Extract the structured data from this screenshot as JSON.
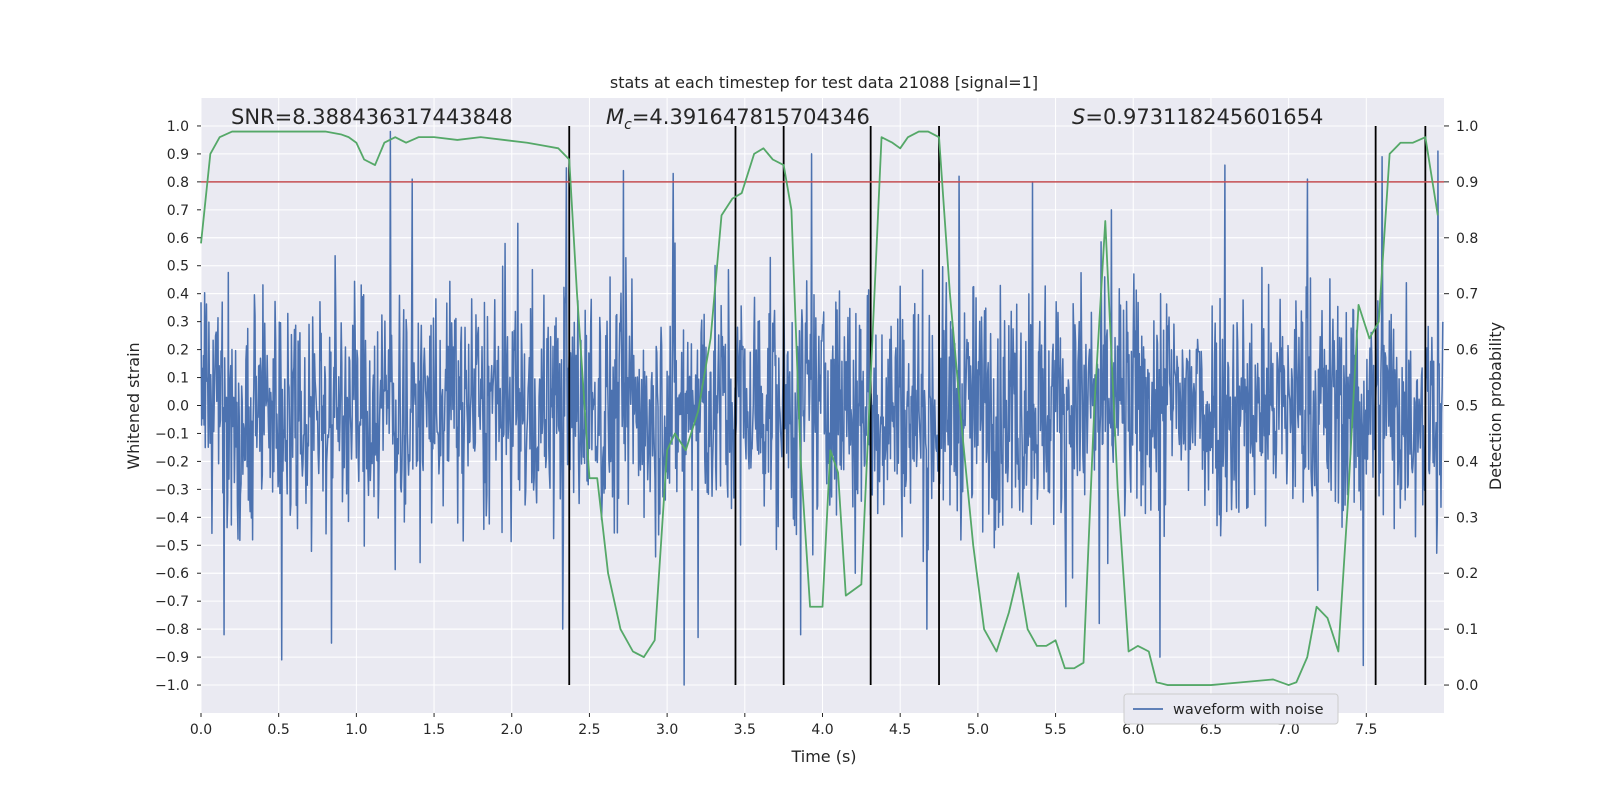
{
  "chart_data": {
    "type": "line",
    "title": "stats at each timestep for test data 21088 [signal=1]",
    "xlabel": "Time (s)",
    "ylabel_left": "Whitened strain",
    "ylabel_right": "Detection probability",
    "xlim": [
      0.0,
      8.0
    ],
    "ylim_left": [
      -1.1,
      1.1
    ],
    "ylim_right": [
      -0.05,
      1.05
    ],
    "x_ticks": [
      "0.0",
      "0.5",
      "1.0",
      "1.5",
      "2.0",
      "2.5",
      "3.0",
      "3.5",
      "4.0",
      "4.5",
      "5.0",
      "5.5",
      "6.0",
      "6.5",
      "7.0",
      "7.5"
    ],
    "x_tick_values": [
      0.0,
      0.5,
      1.0,
      1.5,
      2.0,
      2.5,
      3.0,
      3.5,
      4.0,
      4.5,
      5.0,
      5.5,
      6.0,
      6.5,
      7.0,
      7.5
    ],
    "y_left_ticks": [
      "1.0",
      "0.9",
      "0.8",
      "0.7",
      "0.6",
      "0.5",
      "0.4",
      "0.3",
      "0.2",
      "0.1",
      "0.0",
      "−0.1",
      "−0.2",
      "−0.3",
      "−0.4",
      "−0.5",
      "−0.6",
      "−0.7",
      "−0.8",
      "−0.9",
      "−1.0"
    ],
    "y_left_tick_values": [
      1.0,
      0.9,
      0.8,
      0.7,
      0.6,
      0.5,
      0.4,
      0.3,
      0.2,
      0.1,
      0.0,
      -0.1,
      -0.2,
      -0.3,
      -0.4,
      -0.5,
      -0.6,
      -0.7,
      -0.8,
      -0.9,
      -1.0
    ],
    "y_right_ticks": [
      "1.0",
      "0.9",
      "0.8",
      "0.7",
      "0.6",
      "0.5",
      "0.4",
      "0.3",
      "0.2",
      "0.1",
      "0.0"
    ],
    "y_right_tick_values": [
      1.0,
      0.9,
      0.8,
      0.7,
      0.6,
      0.5,
      0.4,
      0.3,
      0.2,
      0.1,
      0.0
    ],
    "annotations": {
      "snr": "SNR=8.388436317443848",
      "mc_symbol": "M",
      "mc_sub": "c",
      "mc_value": "=4.391647815704346",
      "s_symbol": "S",
      "s_value": "=0.973118245601654"
    },
    "threshold": {
      "value_right_axis": 0.9,
      "color": "#c44e52"
    },
    "vertical_markers": [
      2.37,
      3.44,
      3.75,
      4.31,
      4.75,
      7.56,
      7.88
    ],
    "legend": {
      "label": "waveform with noise",
      "placement": "lower-right"
    },
    "waveform": {
      "name": "waveform with noise",
      "color": "#4c72b0",
      "sample_rate_hz": 256,
      "amplitude_envelope": 0.45,
      "peaks": [
        {
          "x": 0.15,
          "y": -0.82
        },
        {
          "x": 0.52,
          "y": -0.91
        },
        {
          "x": 0.84,
          "y": -0.85
        },
        {
          "x": 1.22,
          "y": 0.98
        },
        {
          "x": 1.36,
          "y": 0.81
        },
        {
          "x": 2.35,
          "y": 0.85
        },
        {
          "x": 2.33,
          "y": -0.8
        },
        {
          "x": 2.72,
          "y": 0.84
        },
        {
          "x": 3.04,
          "y": 0.83
        },
        {
          "x": 3.11,
          "y": -1.0
        },
        {
          "x": 3.2,
          "y": -0.83
        },
        {
          "x": 3.93,
          "y": 0.9
        },
        {
          "x": 3.86,
          "y": -0.82
        },
        {
          "x": 4.21,
          "y": -0.6
        },
        {
          "x": 4.67,
          "y": -0.8
        },
        {
          "x": 4.88,
          "y": 0.82
        },
        {
          "x": 5.35,
          "y": 0.8
        },
        {
          "x": 5.78,
          "y": -0.78
        },
        {
          "x": 5.86,
          "y": 0.7
        },
        {
          "x": 6.17,
          "y": -0.9
        },
        {
          "x": 6.59,
          "y": 0.86
        },
        {
          "x": 7.12,
          "y": 0.81
        },
        {
          "x": 7.48,
          "y": -0.93
        },
        {
          "x": 7.6,
          "y": 0.89
        },
        {
          "x": 7.96,
          "y": 0.91
        }
      ]
    },
    "probability_series": {
      "name": "Detection probability",
      "color": "#55a868",
      "x": [
        0.0,
        0.06,
        0.12,
        0.2,
        0.3,
        0.4,
        0.5,
        0.6,
        0.7,
        0.8,
        0.9,
        0.95,
        1.0,
        1.05,
        1.12,
        1.18,
        1.25,
        1.32,
        1.4,
        1.5,
        1.65,
        1.8,
        1.95,
        2.1,
        2.2,
        2.3,
        2.37,
        2.42,
        2.5,
        2.55,
        2.62,
        2.7,
        2.78,
        2.85,
        2.92,
        3.0,
        3.05,
        3.12,
        3.2,
        3.28,
        3.35,
        3.42,
        3.48,
        3.56,
        3.62,
        3.68,
        3.75,
        3.8,
        3.86,
        3.92,
        4.0,
        4.05,
        4.1,
        4.15,
        4.2,
        4.25,
        4.31,
        4.38,
        4.45,
        4.5,
        4.55,
        4.62,
        4.68,
        4.75,
        4.82,
        4.9,
        4.97,
        5.04,
        5.12,
        5.2,
        5.26,
        5.32,
        5.38,
        5.44,
        5.5,
        5.56,
        5.62,
        5.68,
        5.75,
        5.82,
        5.9,
        5.97,
        6.03,
        6.1,
        6.15,
        6.22,
        6.3,
        6.5,
        6.7,
        6.9,
        7.0,
        7.05,
        7.12,
        7.18,
        7.25,
        7.32,
        7.38,
        7.45,
        7.52,
        7.58,
        7.65,
        7.72,
        7.8,
        7.88,
        7.96
      ],
      "y": [
        0.79,
        0.95,
        0.98,
        0.99,
        0.99,
        0.99,
        0.99,
        0.99,
        0.99,
        0.99,
        0.985,
        0.98,
        0.97,
        0.94,
        0.93,
        0.97,
        0.98,
        0.97,
        0.98,
        0.98,
        0.975,
        0.98,
        0.975,
        0.97,
        0.965,
        0.96,
        0.94,
        0.7,
        0.37,
        0.37,
        0.2,
        0.1,
        0.06,
        0.05,
        0.08,
        0.42,
        0.45,
        0.42,
        0.49,
        0.62,
        0.84,
        0.87,
        0.88,
        0.95,
        0.96,
        0.94,
        0.93,
        0.85,
        0.4,
        0.14,
        0.14,
        0.42,
        0.38,
        0.16,
        0.17,
        0.18,
        0.55,
        0.98,
        0.97,
        0.96,
        0.98,
        0.99,
        0.99,
        0.98,
        0.7,
        0.45,
        0.25,
        0.1,
        0.06,
        0.13,
        0.2,
        0.1,
        0.07,
        0.07,
        0.08,
        0.03,
        0.03,
        0.04,
        0.5,
        0.83,
        0.35,
        0.06,
        0.07,
        0.06,
        0.005,
        0.0,
        0.0,
        0.0,
        0.005,
        0.01,
        0.0,
        0.005,
        0.05,
        0.14,
        0.12,
        0.06,
        0.32,
        0.68,
        0.62,
        0.65,
        0.95,
        0.97,
        0.97,
        0.98,
        0.84
      ]
    }
  }
}
